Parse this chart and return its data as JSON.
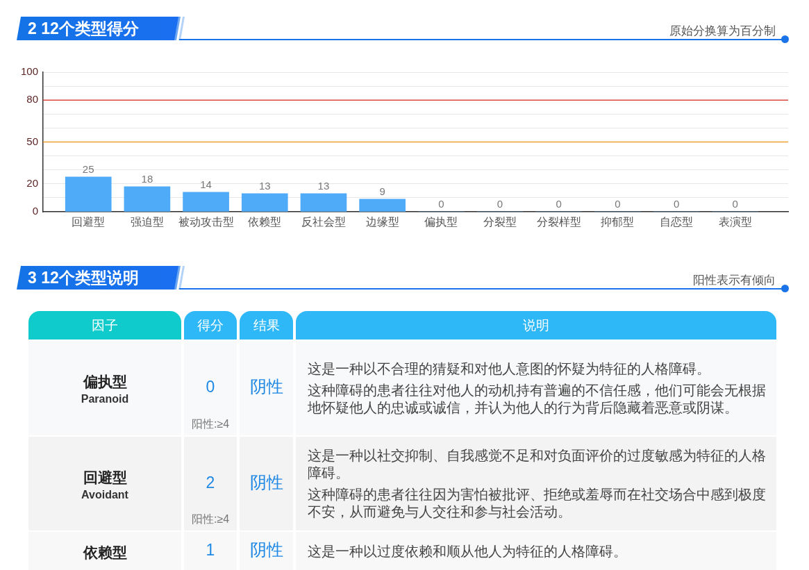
{
  "chart_data": [
    {
      "type": "bar",
      "title": "2 12个类型得分",
      "subtitle": "原始分换算为百分制",
      "categories": [
        "回避型",
        "强迫型",
        "被动攻击型",
        "依赖型",
        "反社会型",
        "边缘型",
        "偏执型",
        "分裂型",
        "分裂样型",
        "抑郁型",
        "自恋型",
        "表演型"
      ],
      "values": [
        25,
        18,
        14,
        13,
        13,
        9,
        0,
        0,
        0,
        0,
        0,
        0
      ],
      "color": "#4faaf7",
      "ylim": [
        0,
        100
      ],
      "yticks": [
        0,
        {
          "value": 10,
          "label": null
        },
        20,
        {
          "value": 30,
          "label": null
        },
        {
          "value": 40,
          "label": null
        },
        50,
        {
          "value": 60,
          "label": null
        },
        {
          "value": 70,
          "label": null
        },
        80,
        {
          "value": 90,
          "label": null
        },
        100
      ],
      "grid": "y",
      "data_labels": true,
      "ref_lines": [
        {
          "axis": "y",
          "value": 80,
          "color": "#d9473f"
        },
        {
          "axis": "y",
          "value": 50,
          "color": "#f0a030"
        }
      ]
    },
    {
      "type": "other",
      "title": "3 12个类型说明",
      "subtitle": "阳性表示有倾向",
      "annotations": [
        "因子",
        "得分",
        "结果",
        "说明",
        "偏执型",
        "Paranoid",
        "0",
        "阴性",
        "阳性:≥4",
        "这是一种以不合理的猜疑和对他人意图的怀疑为特征的人格障碍。",
        "这种障碍的患者往往对他人的动机持有普遍的不信任感，他们可能会无根据地怀疑他人的忠诚或诚信，并认为他人的行为背后隐藏着恶意或阴谋。",
        "回避型",
        "Avoidant",
        "2",
        "阴性",
        "阳性:≥4",
        "这是一种以社交抑制、自我感觉不足和对负面评价的过度敏感为特征的人格障碍。",
        "这种障碍的患者往往因为害怕被批评、拒绝或羞辱而在社交场合中感到极度不安，从而避免与人交往和参与社会活动。",
        "依赖型",
        "1",
        "阴性",
        "这是一种以过度依赖和顺从他人为特征的人格障碍。"
      ]
    }
  ]
}
